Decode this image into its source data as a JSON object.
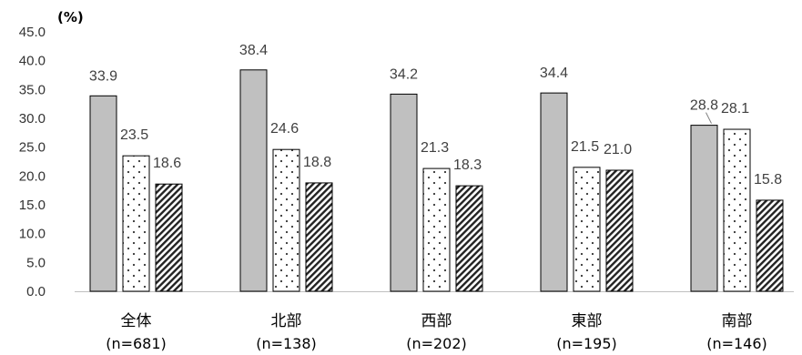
{
  "chart_data": {
    "type": "bar",
    "unit": "(%)",
    "categories": [
      {
        "name": "全体",
        "n": "(n=681)"
      },
      {
        "name": "北部",
        "n": "(n=138)"
      },
      {
        "name": "西部",
        "n": "(n=202)"
      },
      {
        "name": "東部",
        "n": "(n=195)"
      },
      {
        "name": "南部",
        "n": "(n=146)"
      }
    ],
    "series": [
      {
        "values": [
          33.9,
          38.4,
          34.2,
          34.4,
          28.8
        ],
        "labels": [
          "33.9",
          "38.4",
          "34.2",
          "34.4",
          "28.8"
        ],
        "fill": "#c0c0c0",
        "pattern": "solid"
      },
      {
        "values": [
          23.5,
          24.6,
          21.3,
          21.5,
          28.1
        ],
        "labels": [
          "23.5",
          "24.6",
          "21.3",
          "21.5",
          "28.1"
        ],
        "fill": "#ffffff",
        "pattern": "dots"
      },
      {
        "values": [
          18.6,
          18.8,
          18.3,
          21.0,
          15.8
        ],
        "labels": [
          "18.6",
          "18.8",
          "18.3",
          "21.0",
          "15.8"
        ],
        "fill": "#ffffff",
        "pattern": "diagonal-stripes"
      }
    ],
    "y_ticks": [
      "0.0",
      "5.0",
      "10.0",
      "15.0",
      "20.0",
      "25.0",
      "30.0",
      "35.0",
      "40.0",
      "45.0"
    ],
    "ylim": [
      0,
      45
    ],
    "grid": false,
    "legend": "none"
  }
}
